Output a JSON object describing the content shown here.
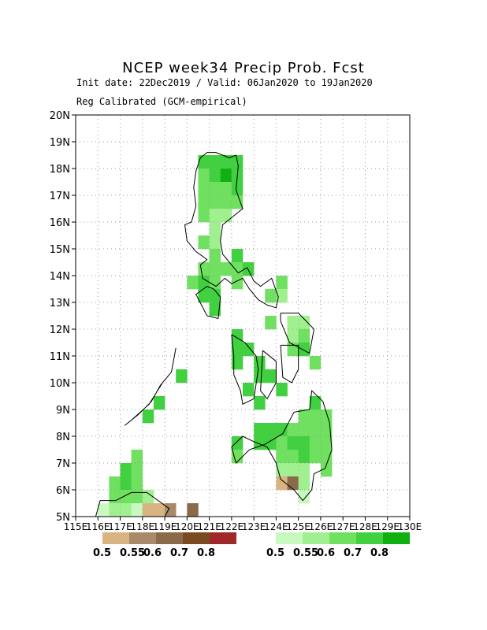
{
  "title": "NCEP week34 Precip Prob. Fcst",
  "subtitle1": "Init date: 22Dec2019 / Valid: 06Jan2020 to 19Jan2020",
  "subtitle2": "Reg Calibrated (GCM-empirical)",
  "axes": {
    "lat_labels": [
      "5N",
      "6N",
      "7N",
      "8N",
      "9N",
      "10N",
      "11N",
      "12N",
      "13N",
      "14N",
      "15N",
      "16N",
      "17N",
      "18N",
      "19N",
      "20N"
    ],
    "lon_labels": [
      "115E",
      "116E",
      "117E",
      "118E",
      "119E",
      "120E",
      "121E",
      "122E",
      "123E",
      "124E",
      "125E",
      "126E",
      "127E",
      "128E",
      "129E",
      "130E"
    ],
    "lat_range": [
      5,
      20
    ],
    "lon_range": [
      115,
      130
    ],
    "grid": true
  },
  "legend_dry": {
    "colors": [
      "#d8b483",
      "#a88a6a",
      "#8b6a4a",
      "#7a4a20",
      "#a0282a"
    ],
    "labels": [
      "0.5",
      "0.55",
      "0.6",
      "0.7",
      "0.8"
    ]
  },
  "legend_wet": {
    "colors": [
      "#c8fac0",
      "#a0f090",
      "#70e060",
      "#40d040",
      "#10b010"
    ],
    "labels": [
      "0.5",
      "0.55",
      "0.6",
      "0.7",
      "0.8"
    ]
  },
  "chart_data": {
    "type": "heatmap",
    "cell_size_deg": 0.5,
    "cells": [
      {
        "lat": 18.0,
        "lon": 120.5,
        "level": 4
      },
      {
        "lat": 18.0,
        "lon": 121.0,
        "level": 4
      },
      {
        "lat": 18.0,
        "lon": 121.5,
        "level": 4
      },
      {
        "lat": 18.0,
        "lon": 122.0,
        "level": 4
      },
      {
        "lat": 17.5,
        "lon": 120.5,
        "level": 3
      },
      {
        "lat": 17.5,
        "lon": 121.0,
        "level": 4
      },
      {
        "lat": 17.5,
        "lon": 121.5,
        "level": 5
      },
      {
        "lat": 17.5,
        "lon": 122.0,
        "level": 4
      },
      {
        "lat": 17.0,
        "lon": 120.5,
        "level": 3
      },
      {
        "lat": 17.0,
        "lon": 121.0,
        "level": 3
      },
      {
        "lat": 17.0,
        "lon": 121.5,
        "level": 3
      },
      {
        "lat": 17.0,
        "lon": 122.0,
        "level": 4
      },
      {
        "lat": 16.5,
        "lon": 120.5,
        "level": 3
      },
      {
        "lat": 16.5,
        "lon": 121.0,
        "level": 3
      },
      {
        "lat": 16.5,
        "lon": 121.5,
        "level": 3
      },
      {
        "lat": 16.5,
        "lon": 122.0,
        "level": 3
      },
      {
        "lat": 16.0,
        "lon": 120.5,
        "level": 3
      },
      {
        "lat": 16.0,
        "lon": 121.0,
        "level": 2
      },
      {
        "lat": 16.0,
        "lon": 121.5,
        "level": 2
      },
      {
        "lat": 15.5,
        "lon": 121.0,
        "level": 2
      },
      {
        "lat": 15.0,
        "lon": 120.5,
        "level": 3
      },
      {
        "lat": 15.0,
        "lon": 121.0,
        "level": 2
      },
      {
        "lat": 14.5,
        "lon": 121.0,
        "level": 3
      },
      {
        "lat": 14.5,
        "lon": 122.0,
        "level": 4
      },
      {
        "lat": 14.0,
        "lon": 120.5,
        "level": 3
      },
      {
        "lat": 14.0,
        "lon": 121.0,
        "level": 3
      },
      {
        "lat": 14.0,
        "lon": 121.5,
        "level": 3
      },
      {
        "lat": 14.0,
        "lon": 122.0,
        "level": 3
      },
      {
        "lat": 14.0,
        "lon": 122.5,
        "level": 4
      },
      {
        "lat": 13.5,
        "lon": 120.0,
        "level": 3
      },
      {
        "lat": 13.5,
        "lon": 120.5,
        "level": 4
      },
      {
        "lat": 13.5,
        "lon": 121.0,
        "level": 3
      },
      {
        "lat": 13.5,
        "lon": 122.0,
        "level": 3
      },
      {
        "lat": 13.5,
        "lon": 124.0,
        "level": 3
      },
      {
        "lat": 13.0,
        "lon": 120.5,
        "level": 4
      },
      {
        "lat": 13.0,
        "lon": 121.0,
        "level": 4
      },
      {
        "lat": 13.0,
        "lon": 123.5,
        "level": 3
      },
      {
        "lat": 13.0,
        "lon": 124.0,
        "level": 2
      },
      {
        "lat": 12.5,
        "lon": 121.0,
        "level": 4
      },
      {
        "lat": 12.0,
        "lon": 123.5,
        "level": 3
      },
      {
        "lat": 12.0,
        "lon": 124.5,
        "level": 2
      },
      {
        "lat": 12.0,
        "lon": 125.0,
        "level": 2
      },
      {
        "lat": 11.5,
        "lon": 122.0,
        "level": 4
      },
      {
        "lat": 11.5,
        "lon": 124.5,
        "level": 2
      },
      {
        "lat": 11.5,
        "lon": 125.0,
        "level": 3
      },
      {
        "lat": 11.0,
        "lon": 122.0,
        "level": 4
      },
      {
        "lat": 11.0,
        "lon": 122.5,
        "level": 4
      },
      {
        "lat": 11.0,
        "lon": 124.5,
        "level": 3
      },
      {
        "lat": 11.0,
        "lon": 125.0,
        "level": 4
      },
      {
        "lat": 10.5,
        "lon": 122.0,
        "level": 4
      },
      {
        "lat": 10.5,
        "lon": 123.0,
        "level": 4
      },
      {
        "lat": 10.5,
        "lon": 125.5,
        "level": 3
      },
      {
        "lat": 10.0,
        "lon": 123.0,
        "level": 4
      },
      {
        "lat": 10.0,
        "lon": 123.5,
        "level": 4
      },
      {
        "lat": 9.5,
        "lon": 122.5,
        "level": 4
      },
      {
        "lat": 9.5,
        "lon": 124.0,
        "level": 4
      },
      {
        "lat": 9.0,
        "lon": 123.0,
        "level": 4
      },
      {
        "lat": 9.0,
        "lon": 125.5,
        "level": 4
      },
      {
        "lat": 8.5,
        "lon": 125.0,
        "level": 3
      },
      {
        "lat": 8.5,
        "lon": 125.5,
        "level": 3
      },
      {
        "lat": 8.5,
        "lon": 126.0,
        "level": 3
      },
      {
        "lat": 8.0,
        "lon": 123.0,
        "level": 4
      },
      {
        "lat": 8.0,
        "lon": 123.5,
        "level": 4
      },
      {
        "lat": 8.0,
        "lon": 124.0,
        "level": 4
      },
      {
        "lat": 8.0,
        "lon": 124.5,
        "level": 3
      },
      {
        "lat": 8.0,
        "lon": 125.0,
        "level": 3
      },
      {
        "lat": 8.0,
        "lon": 125.5,
        "level": 3
      },
      {
        "lat": 8.0,
        "lon": 126.0,
        "level": 3
      },
      {
        "lat": 7.5,
        "lon": 122.0,
        "level": 4
      },
      {
        "lat": 7.5,
        "lon": 123.0,
        "level": 4
      },
      {
        "lat": 7.5,
        "lon": 123.5,
        "level": 4
      },
      {
        "lat": 7.5,
        "lon": 124.0,
        "level": 3
      },
      {
        "lat": 7.5,
        "lon": 124.5,
        "level": 4
      },
      {
        "lat": 7.5,
        "lon": 125.0,
        "level": 4
      },
      {
        "lat": 7.5,
        "lon": 125.5,
        "level": 3
      },
      {
        "lat": 7.5,
        "lon": 126.0,
        "level": 3
      },
      {
        "lat": 7.0,
        "lon": 122.0,
        "level": 3
      },
      {
        "lat": 7.0,
        "lon": 124.0,
        "level": 3
      },
      {
        "lat": 7.0,
        "lon": 124.5,
        "level": 3
      },
      {
        "lat": 7.0,
        "lon": 125.0,
        "level": 4
      },
      {
        "lat": 7.0,
        "lon": 125.5,
        "level": 3
      },
      {
        "lat": 7.0,
        "lon": 126.0,
        "level": 3
      },
      {
        "lat": 6.5,
        "lon": 124.0,
        "level": 2
      },
      {
        "lat": 6.5,
        "lon": 124.5,
        "level": 2
      },
      {
        "lat": 6.5,
        "lon": 125.0,
        "level": 2
      },
      {
        "lat": 6.5,
        "lon": 126.0,
        "level": 3
      },
      {
        "lat": 6.0,
        "lon": 124.0,
        "level": -1
      },
      {
        "lat": 6.0,
        "lon": 124.5,
        "level": -3
      },
      {
        "lat": 6.0,
        "lon": 125.0,
        "level": 2
      },
      {
        "lat": 5.5,
        "lon": 125.0,
        "level": 1
      },
      {
        "lat": 7.0,
        "lon": 117.5,
        "level": 3
      },
      {
        "lat": 6.5,
        "lon": 117.0,
        "level": 4
      },
      {
        "lat": 6.5,
        "lon": 117.5,
        "level": 3
      },
      {
        "lat": 6.0,
        "lon": 116.5,
        "level": 3
      },
      {
        "lat": 6.0,
        "lon": 117.0,
        "level": 4
      },
      {
        "lat": 6.0,
        "lon": 117.5,
        "level": 3
      },
      {
        "lat": 5.5,
        "lon": 116.5,
        "level": 3
      },
      {
        "lat": 5.5,
        "lon": 117.0,
        "level": 3
      },
      {
        "lat": 5.5,
        "lon": 117.5,
        "level": 3
      },
      {
        "lat": 5.5,
        "lon": 118.0,
        "level": 2
      },
      {
        "lat": 5.0,
        "lon": 116.0,
        "level": 1
      },
      {
        "lat": 5.0,
        "lon": 116.5,
        "level": 2
      },
      {
        "lat": 5.0,
        "lon": 117.0,
        "level": 2
      },
      {
        "lat": 5.0,
        "lon": 117.5,
        "level": 1
      },
      {
        "lat": 5.0,
        "lon": 118.0,
        "level": -1
      },
      {
        "lat": 5.0,
        "lon": 118.5,
        "level": -1
      },
      {
        "lat": 5.0,
        "lon": 119.0,
        "level": -2
      },
      {
        "lat": 5.0,
        "lon": 120.0,
        "level": -3
      },
      {
        "lat": 10.0,
        "lon": 119.5,
        "level": 4
      },
      {
        "lat": 9.0,
        "lon": 118.5,
        "level": 4
      },
      {
        "lat": 8.5,
        "lon": 118.0,
        "level": 4
      }
    ]
  },
  "coastlines": [
    [
      [
        120.6,
        18.4
      ],
      [
        120.9,
        18.6
      ],
      [
        121.3,
        18.6
      ],
      [
        121.9,
        18.4
      ],
      [
        122.2,
        18.5
      ],
      [
        122.3,
        18.1
      ],
      [
        122.2,
        17.2
      ],
      [
        122.5,
        16.5
      ],
      [
        121.9,
        16.1
      ],
      [
        121.6,
        15.9
      ],
      [
        121.5,
        15.3
      ],
      [
        121.6,
        14.8
      ],
      [
        121.9,
        14.5
      ],
      [
        122.3,
        14.1
      ],
      [
        122.7,
        14.3
      ],
      [
        123.0,
        13.8
      ],
      [
        123.3,
        13.6
      ],
      [
        123.8,
        13.9
      ],
      [
        124.1,
        13.2
      ],
      [
        124.0,
        12.8
      ],
      [
        123.6,
        12.9
      ],
      [
        123.2,
        13.1
      ],
      [
        122.8,
        13.5
      ],
      [
        122.5,
        13.9
      ],
      [
        122.0,
        13.7
      ],
      [
        121.7,
        13.9
      ],
      [
        121.3,
        13.6
      ],
      [
        120.7,
        13.9
      ],
      [
        120.6,
        14.4
      ],
      [
        120.9,
        14.6
      ],
      [
        120.4,
        14.9
      ],
      [
        120.0,
        15.3
      ],
      [
        119.9,
        15.9
      ],
      [
        120.2,
        16.0
      ],
      [
        120.4,
        16.6
      ],
      [
        120.3,
        17.3
      ],
      [
        120.4,
        17.9
      ],
      [
        120.6,
        18.4
      ]
    ],
    [
      [
        121.2,
        13.5
      ],
      [
        121.5,
        13.2
      ],
      [
        121.4,
        12.4
      ],
      [
        120.9,
        12.5
      ],
      [
        120.4,
        13.3
      ],
      [
        120.9,
        13.6
      ],
      [
        121.2,
        13.5
      ]
    ],
    [
      [
        117.2,
        8.4
      ],
      [
        117.8,
        8.8
      ],
      [
        118.4,
        9.3
      ],
      [
        118.8,
        9.9
      ],
      [
        119.3,
        10.4
      ],
      [
        119.5,
        11.3
      ],
      [
        119.3,
        10.4
      ],
      [
        118.9,
        10.0
      ],
      [
        118.3,
        9.2
      ],
      [
        117.5,
        8.6
      ],
      [
        117.2,
        8.4
      ]
    ],
    [
      [
        122.0,
        11.8
      ],
      [
        122.6,
        11.5
      ],
      [
        123.1,
        11.0
      ],
      [
        123.2,
        10.5
      ],
      [
        123.0,
        9.4
      ],
      [
        122.5,
        9.2
      ],
      [
        122.4,
        9.7
      ],
      [
        122.1,
        10.3
      ],
      [
        122.1,
        11.0
      ],
      [
        122.0,
        11.8
      ]
    ],
    [
      [
        123.4,
        11.2
      ],
      [
        124.0,
        10.8
      ],
      [
        124.0,
        10.0
      ],
      [
        123.6,
        9.4
      ],
      [
        123.3,
        9.7
      ],
      [
        123.4,
        11.2
      ]
    ],
    [
      [
        124.2,
        11.4
      ],
      [
        125.0,
        11.4
      ],
      [
        125.0,
        10.5
      ],
      [
        124.7,
        10.0
      ],
      [
        124.3,
        10.2
      ],
      [
        124.2,
        11.4
      ]
    ],
    [
      [
        124.2,
        12.6
      ],
      [
        125.0,
        12.6
      ],
      [
        125.7,
        12.0
      ],
      [
        125.5,
        11.1
      ],
      [
        124.6,
        11.5
      ],
      [
        124.2,
        12.3
      ],
      [
        124.2,
        12.6
      ]
    ],
    [
      [
        122.0,
        7.6
      ],
      [
        122.2,
        7.0
      ],
      [
        122.8,
        7.5
      ],
      [
        123.5,
        7.7
      ],
      [
        123.9,
        7.9
      ],
      [
        124.3,
        8.1
      ],
      [
        124.8,
        8.9
      ],
      [
        125.5,
        9.0
      ],
      [
        125.6,
        9.7
      ],
      [
        126.1,
        9.3
      ],
      [
        126.4,
        8.5
      ],
      [
        126.5,
        7.5
      ],
      [
        126.2,
        6.8
      ],
      [
        125.7,
        6.6
      ],
      [
        125.6,
        6.0
      ],
      [
        125.2,
        5.6
      ],
      [
        124.8,
        6.0
      ],
      [
        124.2,
        6.4
      ],
      [
        124.0,
        7.0
      ],
      [
        123.6,
        7.6
      ],
      [
        123.0,
        7.8
      ],
      [
        122.5,
        8.0
      ],
      [
        122.0,
        7.6
      ]
    ],
    [
      [
        116.8,
        5.6
      ],
      [
        117.5,
        5.9
      ],
      [
        118.2,
        5.9
      ],
      [
        119.2,
        5.3
      ],
      [
        119.0,
        5.0
      ],
      [
        115.9,
        5.0
      ],
      [
        116.1,
        5.6
      ],
      [
        116.8,
        5.6
      ]
    ]
  ]
}
